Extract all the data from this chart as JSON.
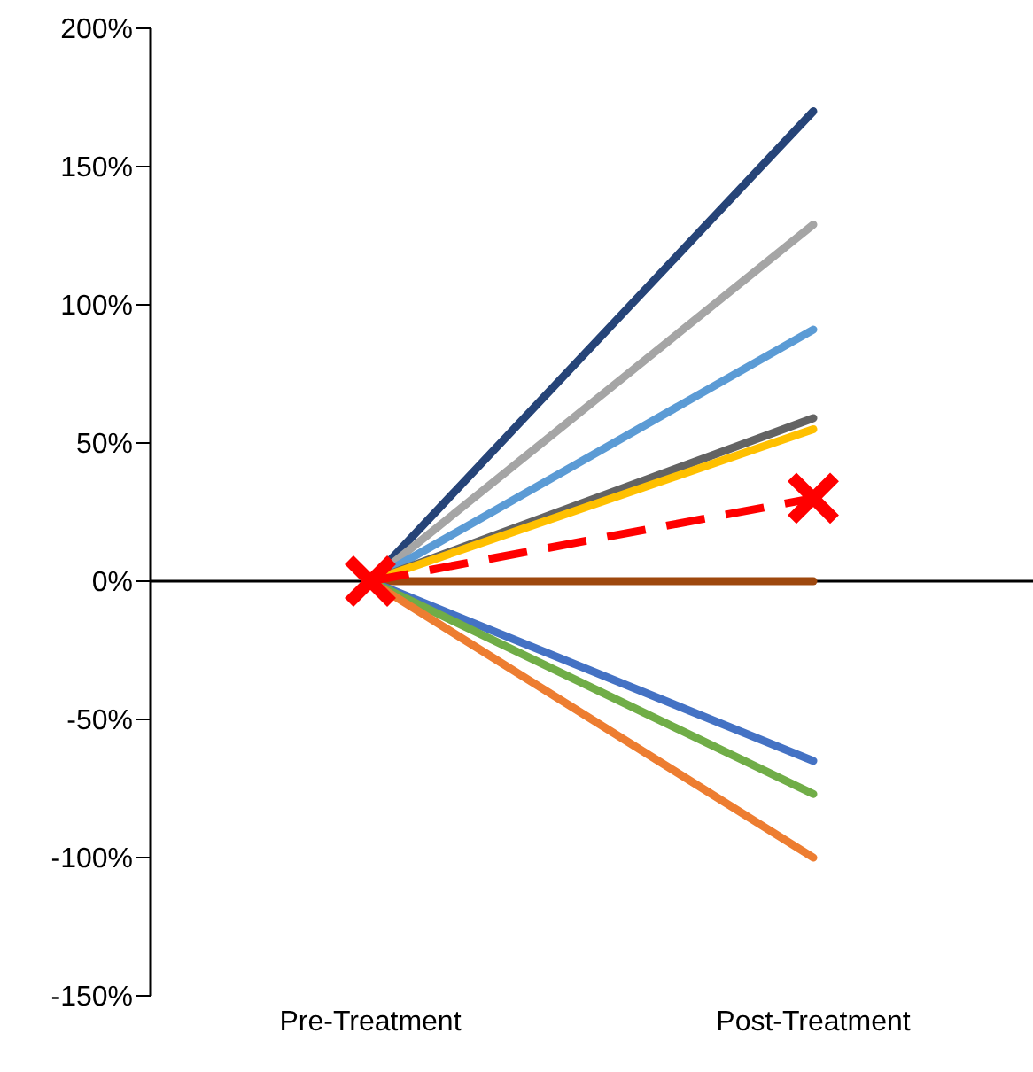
{
  "chart_data": {
    "type": "line",
    "categories": [
      "Pre-Treatment",
      "Post-Treatment"
    ],
    "ylim": [
      -150,
      200
    ],
    "yticks": [
      {
        "value": -150,
        "label": "-150%"
      },
      {
        "value": -100,
        "label": "-100%"
      },
      {
        "value": -50,
        "label": "-50%"
      },
      {
        "value": 0,
        "label": "0%"
      },
      {
        "value": 50,
        "label": "50%"
      },
      {
        "value": 100,
        "label": "100%"
      },
      {
        "value": 150,
        "label": "150%"
      },
      {
        "value": 200,
        "label": "200%"
      }
    ],
    "series": [
      {
        "color": "#264478",
        "values": [
          0,
          170
        ]
      },
      {
        "color": "#a5a5a5",
        "values": [
          0,
          129
        ]
      },
      {
        "color": "#5b9bd5",
        "values": [
          0,
          91
        ]
      },
      {
        "color": "#636363",
        "values": [
          0,
          59
        ]
      },
      {
        "color": "#ffc000",
        "values": [
          0,
          55
        ]
      },
      {
        "color": "#9e480e",
        "values": [
          0,
          0
        ]
      },
      {
        "color": "#4472c4",
        "values": [
          0,
          -65
        ]
      },
      {
        "color": "#70ad47",
        "values": [
          0,
          -77
        ]
      },
      {
        "color": "#ed7d31",
        "values": [
          0,
          -100
        ]
      },
      {
        "color": "#ff0000",
        "values": [
          0,
          30
        ],
        "marker": "cross",
        "line_style": "dashed"
      }
    ]
  }
}
